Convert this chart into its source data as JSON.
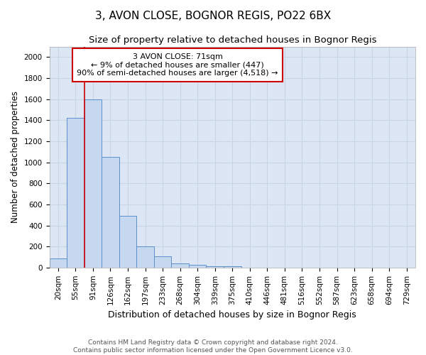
{
  "title": "3, AVON CLOSE, BOGNOR REGIS, PO22 6BX",
  "subtitle": "Size of property relative to detached houses in Bognor Regis",
  "xlabel": "Distribution of detached houses by size in Bognor Regis",
  "ylabel": "Number of detached properties",
  "categories": [
    "20sqm",
    "55sqm",
    "91sqm",
    "126sqm",
    "162sqm",
    "197sqm",
    "233sqm",
    "268sqm",
    "304sqm",
    "339sqm",
    "375sqm",
    "410sqm",
    "446sqm",
    "481sqm",
    "516sqm",
    "552sqm",
    "587sqm",
    "623sqm",
    "658sqm",
    "694sqm",
    "729sqm"
  ],
  "values": [
    85,
    1420,
    1600,
    1050,
    490,
    200,
    108,
    40,
    25,
    15,
    10,
    0,
    0,
    0,
    0,
    0,
    0,
    0,
    0,
    0,
    0
  ],
  "bar_color": "#c5d8f0",
  "bar_edge_color": "#5b8fcc",
  "vline_x": 1.5,
  "vline_color": "#cc0000",
  "annotation_box_text": "3 AVON CLOSE: 71sqm\n← 9% of detached houses are smaller (447)\n90% of semi-detached houses are larger (4,518) →",
  "annotation_box_color": "#ffffff",
  "annotation_box_edge_color": "#cc0000",
  "ylim": [
    0,
    2100
  ],
  "yticks": [
    0,
    200,
    400,
    600,
    800,
    1000,
    1200,
    1400,
    1600,
    1800,
    2000
  ],
  "grid_color": "#c8d4e8",
  "bg_color": "#dce6f5",
  "footer_text": "Contains HM Land Registry data © Crown copyright and database right 2024.\nContains public sector information licensed under the Open Government Licence v3.0.",
  "title_fontsize": 11,
  "subtitle_fontsize": 9.5,
  "xlabel_fontsize": 9,
  "ylabel_fontsize": 8.5,
  "tick_fontsize": 7.5,
  "footer_fontsize": 6.5,
  "annotation_fontsize": 8
}
